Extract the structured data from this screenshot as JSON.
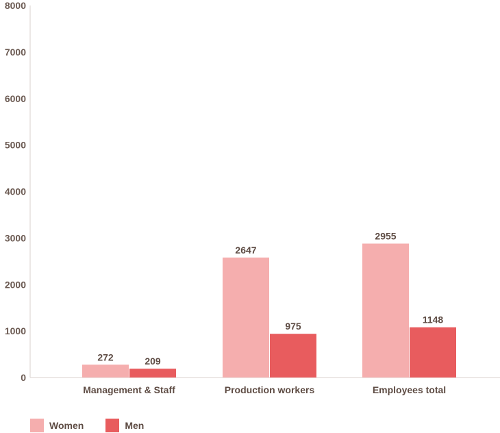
{
  "chart_data": {
    "type": "bar",
    "categories": [
      "Management & Staff",
      "Production workers",
      "Employees total"
    ],
    "series": [
      {
        "name": "Women",
        "values": [
          272,
          2647,
          2955
        ],
        "labels": [
          "272",
          "2647",
          "2955"
        ],
        "color": "#f5aeae"
      },
      {
        "name": "Men",
        "values": [
          209,
          975,
          1148
        ],
        "labels": [
          "209",
          "975",
          "1148"
        ],
        "color": "#e85c5e"
      }
    ],
    "bar_heights_read": {
      "Women": [
        276,
        2580,
        2880
      ],
      "Men": [
        190,
        940,
        1080
      ]
    },
    "yticks": [
      "0",
      "1000",
      "2000",
      "3000",
      "4000",
      "5000",
      "6000",
      "7000",
      "8000"
    ],
    "ylim": [
      0,
      8000
    ],
    "legend_position": "bottom-left",
    "grid": false
  }
}
